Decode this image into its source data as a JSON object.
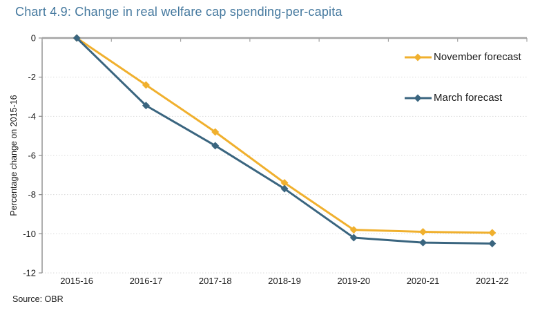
{
  "title": "Chart 4.9: Change in real welfare cap spending-per-capita",
  "source": "Source: OBR",
  "colors": {
    "title": "#44789E",
    "november": "#F0B02E",
    "march": "#3A657F",
    "axis": "#8C8C8C",
    "top_axis": "#A3A3A3",
    "gridline": "#D9D9D9",
    "text": "#1A1A1A",
    "background": "#FFFFFF"
  },
  "chart_data": {
    "type": "line",
    "title": "Chart 4.9: Change in real welfare cap spending-per-capita",
    "categories": [
      "2015-16",
      "2016-17",
      "2017-18",
      "2018-19",
      "2019-20",
      "2020-21",
      "2021-22"
    ],
    "series": [
      {
        "name": "November forecast",
        "color": "#F0B02E",
        "values": [
          0,
          -2.4,
          -4.8,
          -7.4,
          -9.8,
          -9.9,
          -9.95
        ]
      },
      {
        "name": "March forecast",
        "color": "#3A657F",
        "values": [
          0,
          -3.45,
          -5.5,
          -7.7,
          -10.2,
          -10.45,
          -10.5
        ]
      }
    ],
    "xlabel": "",
    "ylabel": "Percentage change on 2015-16",
    "ylim": [
      -12,
      0
    ],
    "yticks": [
      0,
      -2,
      -4,
      -6,
      -8,
      -10,
      -12
    ],
    "grid": "horizontal-dotted",
    "legend_position": "inside-top-right",
    "marker": "diamond"
  }
}
